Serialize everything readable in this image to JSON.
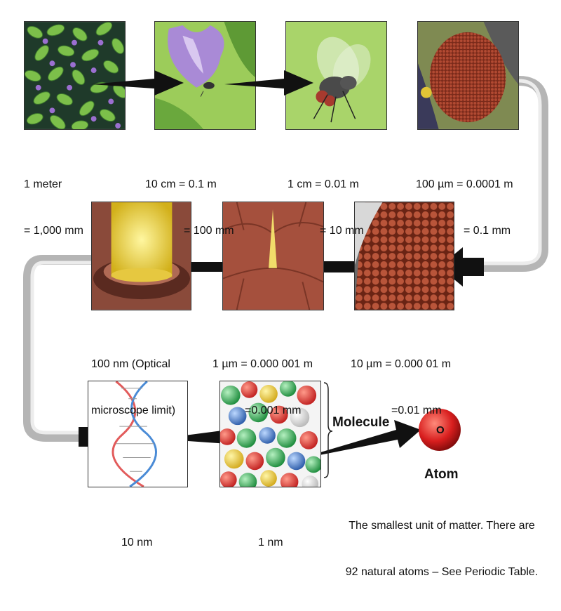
{
  "panels": [
    {
      "name": "leaves",
      "caption": [
        "1 meter",
        "= 1,000 mm"
      ]
    },
    {
      "name": "flower",
      "caption": [
        "10 cm = 0.1 m",
        "= 100 mm"
      ]
    },
    {
      "name": "fly",
      "caption": [
        "1 cm = 0.01 m",
        "= 10 mm"
      ]
    },
    {
      "name": "fly-eye",
      "caption": [
        "100 µm = 0.0001 m",
        "= 0.1 mm"
      ]
    },
    {
      "name": "eye-facets",
      "caption": [
        "10 µm = 0.000 01 m",
        "=0.01 mm"
      ]
    },
    {
      "name": "facet-hair",
      "caption": [
        "1 µm = 0.000 001 m",
        "=0.001 mm"
      ]
    },
    {
      "name": "hair-tip",
      "caption": [
        "100 nm (Optical",
        "microscope limit)"
      ]
    },
    {
      "name": "dna",
      "caption": [
        "10 nm",
        ""
      ]
    },
    {
      "name": "molecule",
      "caption": [
        "1 nm",
        ""
      ]
    }
  ],
  "molecule_label": "Molecule",
  "atom": {
    "title": "Atom",
    "letter": "O",
    "description": [
      "The smallest unit of matter. There are",
      "92 natural atoms – See Periodic Table."
    ]
  }
}
